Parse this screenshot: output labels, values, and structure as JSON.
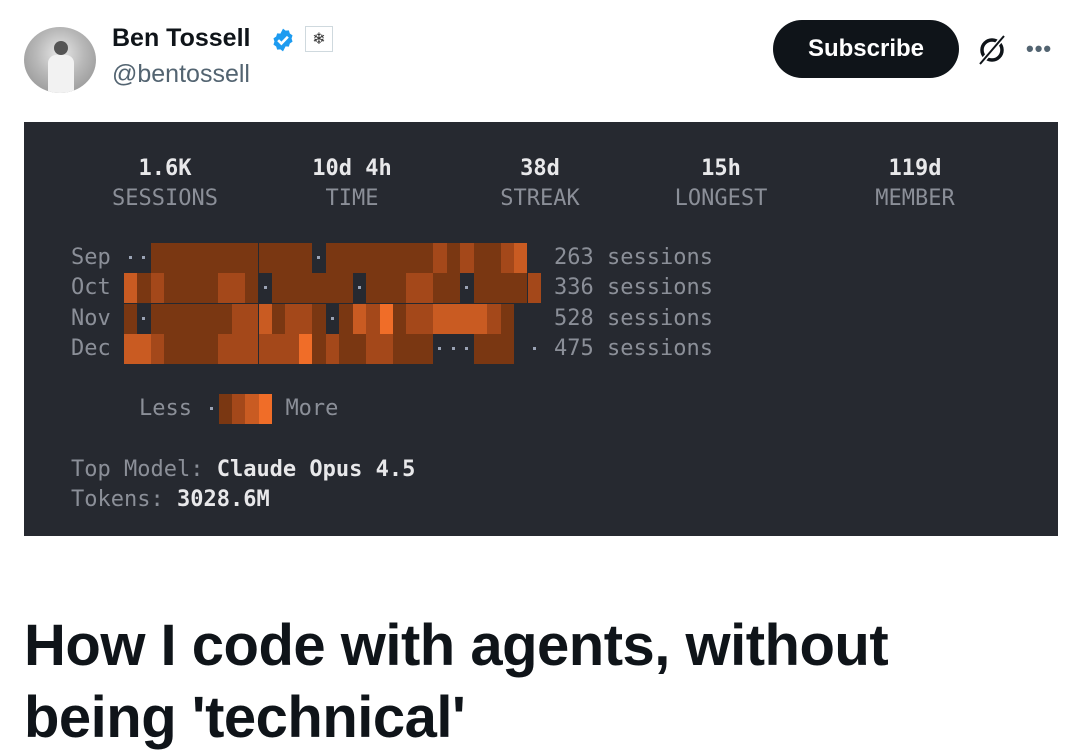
{
  "author": {
    "name": "Ben Tossell",
    "handle": "@bentossell",
    "verified": true,
    "affiliate_badge_icon": "snowflake-icon"
  },
  "actions": {
    "subscribe_label": "Subscribe",
    "grok_icon": "grok-icon",
    "more_icon": "more-icon"
  },
  "colors": {
    "panel_bg": "#262930",
    "heat_levels": [
      "#262930",
      "#7a3712",
      "#a4481a",
      "#c95b22",
      "#f06d28"
    ],
    "verified": "#1d9bf0"
  },
  "stats_card": {
    "stats": [
      {
        "value": "1.6K",
        "label": "SESSIONS"
      },
      {
        "value": "10d 4h",
        "label": "TIME"
      },
      {
        "value": "38d",
        "label": "STREAK"
      },
      {
        "value": "15h",
        "label": "LONGEST"
      },
      {
        "value": "119d",
        "label": "MEMBER"
      }
    ],
    "heatmap": [
      {
        "month": "Sep",
        "sessions": "263 sessions",
        "levels": [
          0,
          0,
          1,
          1,
          1,
          1,
          1,
          1,
          1,
          1,
          1,
          1,
          1,
          1,
          0,
          1,
          1,
          1,
          1,
          1,
          1,
          1,
          1,
          2,
          1,
          2,
          1,
          1,
          2,
          3,
          -1
        ]
      },
      {
        "month": "Oct",
        "sessions": "336 sessions",
        "levels": [
          3,
          1,
          2,
          1,
          1,
          1,
          1,
          2,
          2,
          1,
          0,
          1,
          1,
          1,
          1,
          1,
          1,
          0,
          1,
          1,
          1,
          2,
          2,
          1,
          1,
          0,
          1,
          1,
          1,
          1,
          2
        ]
      },
      {
        "month": "Nov",
        "sessions": "528 sessions",
        "levels": [
          1,
          0,
          1,
          1,
          1,
          1,
          1,
          1,
          2,
          2,
          3,
          1,
          2,
          2,
          1,
          0,
          1,
          3,
          2,
          4,
          1,
          2,
          2,
          3,
          3,
          3,
          3,
          2,
          1,
          -1,
          -1
        ]
      },
      {
        "month": "Dec",
        "sessions": "475 sessions",
        "levels": [
          3,
          3,
          2,
          1,
          1,
          1,
          1,
          2,
          2,
          2,
          2,
          2,
          2,
          4,
          1,
          2,
          1,
          1,
          2,
          2,
          1,
          1,
          1,
          0,
          0,
          0,
          1,
          1,
          1,
          -1,
          0
        ]
      }
    ],
    "legend": {
      "less": "Less",
      "more": "More",
      "levels": [
        0,
        1,
        2,
        3,
        4
      ]
    },
    "top_model_label": "Top Model:",
    "top_model": "Claude Opus 4.5",
    "tokens_label": "Tokens:",
    "tokens": "3028.6M"
  },
  "article": {
    "title_line1": "How I code with agents, without",
    "title_line2": "being 'technical'"
  }
}
